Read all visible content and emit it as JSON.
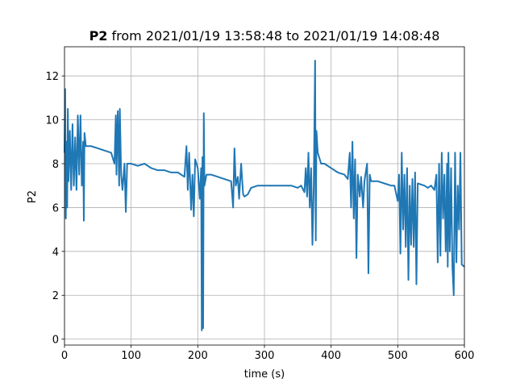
{
  "chart_data": {
    "type": "line",
    "title": {
      "variable": "P2",
      "text": "from 2021/01/19 13:58:48 to 2021/01/19 14:08:48"
    },
    "xlabel": "time (s)",
    "ylabel": "P2",
    "xlim": [
      0,
      600
    ],
    "ylim": [
      -0.27,
      13.33
    ],
    "xticks": [
      0,
      100,
      200,
      300,
      400,
      500,
      600
    ],
    "yticks": [
      0,
      2,
      4,
      6,
      8,
      10,
      12
    ],
    "grid": true,
    "x": [
      0,
      1,
      2,
      3,
      4,
      5,
      6,
      8,
      10,
      12,
      14,
      16,
      18,
      20,
      22,
      24,
      26,
      28,
      29,
      30,
      32,
      40,
      50,
      60,
      70,
      75,
      77,
      78,
      80,
      82,
      83,
      85,
      87,
      90,
      92,
      94,
      100,
      110,
      120,
      130,
      140,
      150,
      160,
      170,
      180,
      183,
      185,
      187,
      190,
      192,
      194,
      196,
      200,
      203,
      205,
      206,
      207,
      208,
      209,
      210,
      213,
      220,
      230,
      240,
      250,
      253,
      255,
      257,
      260,
      262,
      265,
      268,
      270,
      275,
      280,
      290,
      300,
      310,
      320,
      330,
      340,
      350,
      355,
      360,
      362,
      364,
      366,
      368,
      370,
      372,
      374,
      376,
      377,
      378,
      380,
      385,
      390,
      400,
      410,
      420,
      425,
      428,
      430,
      432,
      434,
      436,
      438,
      440,
      443,
      445,
      448,
      450,
      454,
      456,
      458,
      460,
      470,
      480,
      490,
      495,
      500,
      502,
      504,
      506,
      508,
      510,
      512,
      514,
      516,
      518,
      520,
      522,
      524,
      526,
      528,
      530,
      540,
      545,
      550,
      555,
      558,
      560,
      562,
      564,
      566,
      568,
      570,
      572,
      574,
      575,
      576,
      578,
      580,
      582,
      584,
      586,
      588,
      590,
      592,
      594,
      596,
      600
    ],
    "series": [
      {
        "name": "P2",
        "color": "#1f77b4",
        "values": [
          8.5,
          11.4,
          5.5,
          9.0,
          6.0,
          10.5,
          7.2,
          9.5,
          6.8,
          9.8,
          7.0,
          9.2,
          6.8,
          10.2,
          7.5,
          10.2,
          7.0,
          9.0,
          5.4,
          9.4,
          8.8,
          8.8,
          8.7,
          8.6,
          8.5,
          8.0,
          10.2,
          7.5,
          10.4,
          7.0,
          10.5,
          7.5,
          6.8,
          8.0,
          5.8,
          8.0,
          8.0,
          7.9,
          8.0,
          7.8,
          7.7,
          7.7,
          7.6,
          7.6,
          7.4,
          8.8,
          6.8,
          8.5,
          5.9,
          7.5,
          5.6,
          8.2,
          7.8,
          6.4,
          7.8,
          0.4,
          8.3,
          0.5,
          10.3,
          7.0,
          7.5,
          7.5,
          7.4,
          7.3,
          7.2,
          6.0,
          8.7,
          7.0,
          7.4,
          6.4,
          8.0,
          6.6,
          6.5,
          6.6,
          6.9,
          7.0,
          7.0,
          7.0,
          7.0,
          7.0,
          7.0,
          6.9,
          7.0,
          6.7,
          7.8,
          6.5,
          8.5,
          6.0,
          7.8,
          4.3,
          7.0,
          12.7,
          4.5,
          9.5,
          8.5,
          8.0,
          8.0,
          7.8,
          7.6,
          7.5,
          7.3,
          8.5,
          6.0,
          9.0,
          5.5,
          8.2,
          3.7,
          7.5,
          6.5,
          7.4,
          6.0,
          7.2,
          8.0,
          3.0,
          7.5,
          7.2,
          7.2,
          7.1,
          7.0,
          7.0,
          6.3,
          7.5,
          3.9,
          8.5,
          5.0,
          7.5,
          4.2,
          7.8,
          2.7,
          7.0,
          4.3,
          7.3,
          4.2,
          7.6,
          2.5,
          7.1,
          7.0,
          6.9,
          7.0,
          6.8,
          7.5,
          3.5,
          8.0,
          3.8,
          8.5,
          5.5,
          7.5,
          4.0,
          8.0,
          3.3,
          8.5,
          4.0,
          7.8,
          3.3,
          2.0,
          8.5,
          3.5,
          7.0,
          5.0,
          8.5,
          3.4,
          3.3
        ]
      }
    ]
  }
}
